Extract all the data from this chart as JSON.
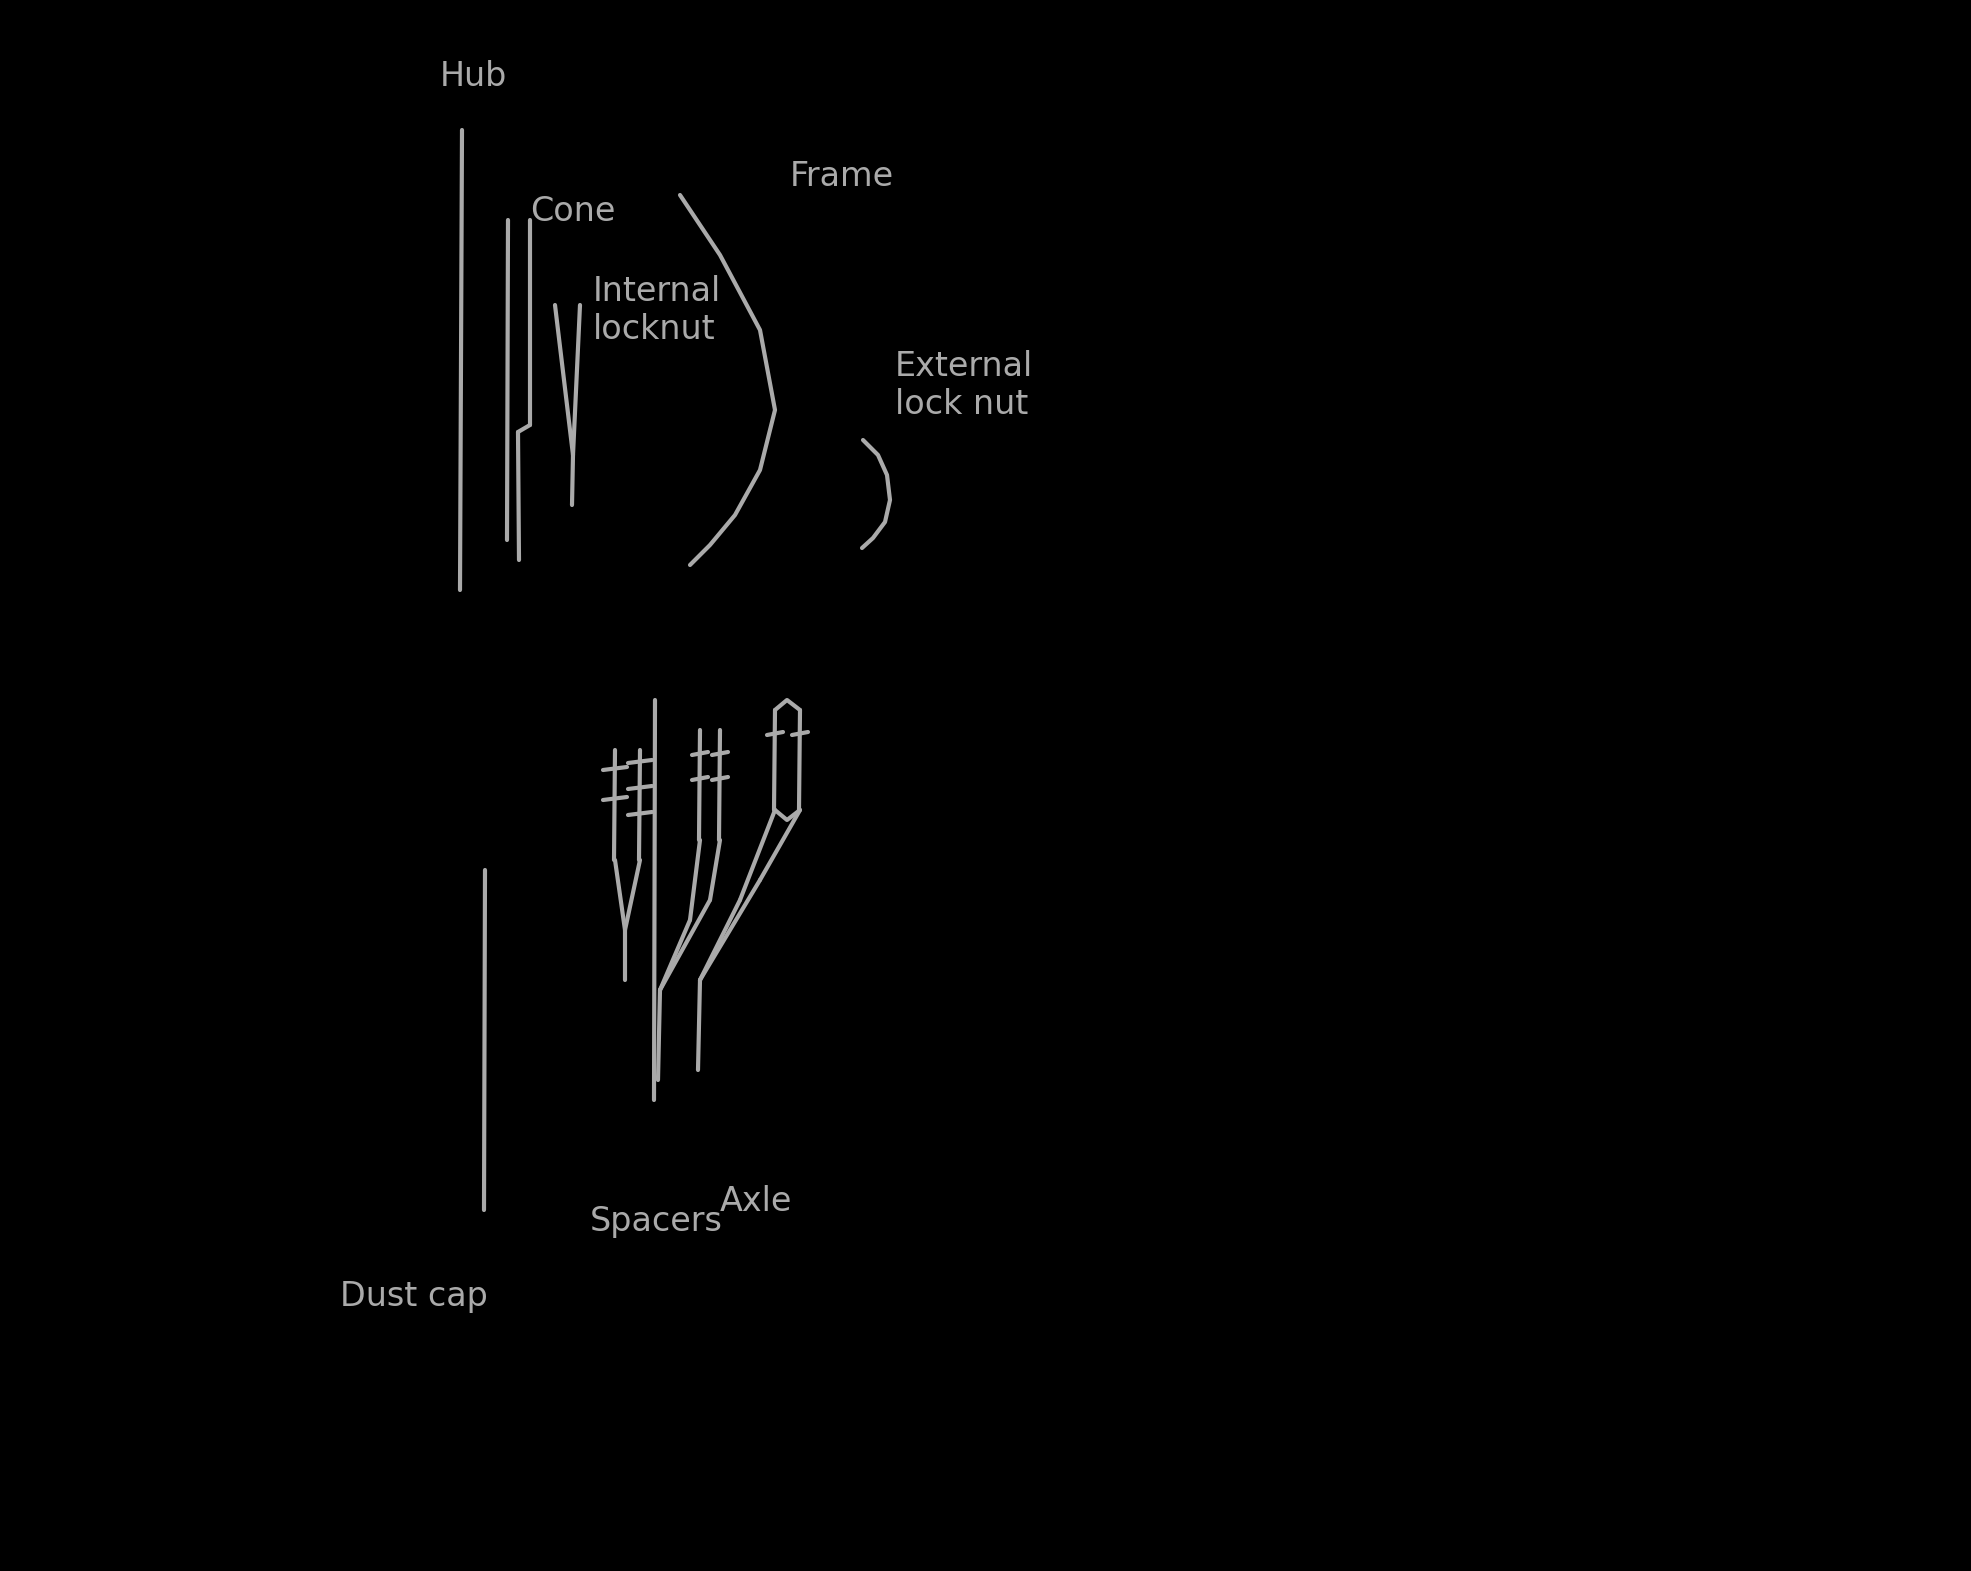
{
  "background_color": "#000000",
  "line_color": "#aaaaaa",
  "text_color": "#aaaaaa",
  "line_width": 3.0,
  "font_size": 24,
  "hub_label": "Hub",
  "cone_label": "Cone",
  "internal_locknut_label": "Internal\nlocknut",
  "frame_label": "Frame",
  "external_locknut_label": "External\nlock nut",
  "spacers_label": "Spacers",
  "axle_label": "Axle",
  "dust_cap_label": "Dust cap"
}
